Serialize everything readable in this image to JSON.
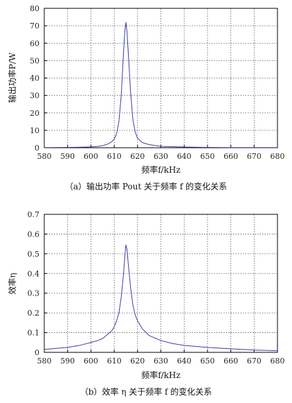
{
  "chart_data": [
    {
      "type": "line",
      "xlabel": "频率f/kHz",
      "ylabel": "输出功率P/W",
      "caption": "（a）输出功率 Pout 关于频率 f 的变化关系",
      "xlim": [
        580,
        680
      ],
      "ylim": [
        0,
        80
      ],
      "xticks": [
        580,
        590,
        600,
        610,
        620,
        630,
        640,
        650,
        660,
        670,
        680
      ],
      "yticks": [
        0,
        10,
        20,
        30,
        40,
        50,
        60,
        70,
        80
      ],
      "grid": true,
      "color": "#3b3fa6",
      "series": [
        {
          "x": [
            580,
            590,
            595,
            600,
            603,
            605,
            607,
            609,
            610,
            611,
            612,
            613,
            614,
            614.5,
            615,
            615.5,
            616,
            617,
            618,
            619,
            620,
            622,
            625,
            630,
            640,
            650,
            660,
            670,
            680
          ],
          "y": [
            0.1,
            0.2,
            0.3,
            0.5,
            0.8,
            1.2,
            2,
            3.5,
            5,
            8,
            15,
            30,
            55,
            66,
            72,
            66,
            55,
            32,
            16,
            9,
            5.5,
            3,
            1.8,
            0.8,
            0.4,
            0.2,
            0.1,
            0.1,
            0.1
          ]
        }
      ]
    },
    {
      "type": "line",
      "xlabel": "频率f/kHz",
      "ylabel": "效率η",
      "caption": "（b）效率 η 关于频率 f 的变化关系",
      "xlim": [
        580,
        680
      ],
      "ylim": [
        0,
        0.7
      ],
      "xticks": [
        580,
        590,
        600,
        610,
        620,
        630,
        640,
        650,
        660,
        670,
        680
      ],
      "yticks": [
        "0",
        "0.1",
        "0.2",
        "0.3",
        "0.4",
        "0.5",
        "0.6",
        "0.7"
      ],
      "grid": true,
      "color": "#3b3fa6",
      "series": [
        {
          "x": [
            580,
            585,
            590,
            595,
            600,
            603,
            605,
            607,
            609,
            610,
            611,
            612,
            613,
            614,
            614.5,
            615,
            615.5,
            616,
            617,
            618,
            619,
            620,
            622,
            625,
            630,
            635,
            640,
            650,
            660,
            670,
            680
          ],
          "y": [
            0.015,
            0.02,
            0.025,
            0.035,
            0.05,
            0.06,
            0.07,
            0.09,
            0.11,
            0.13,
            0.16,
            0.2,
            0.28,
            0.4,
            0.48,
            0.545,
            0.52,
            0.45,
            0.33,
            0.24,
            0.19,
            0.16,
            0.12,
            0.085,
            0.06,
            0.045,
            0.035,
            0.025,
            0.018,
            0.012,
            0.008
          ]
        }
      ]
    }
  ]
}
